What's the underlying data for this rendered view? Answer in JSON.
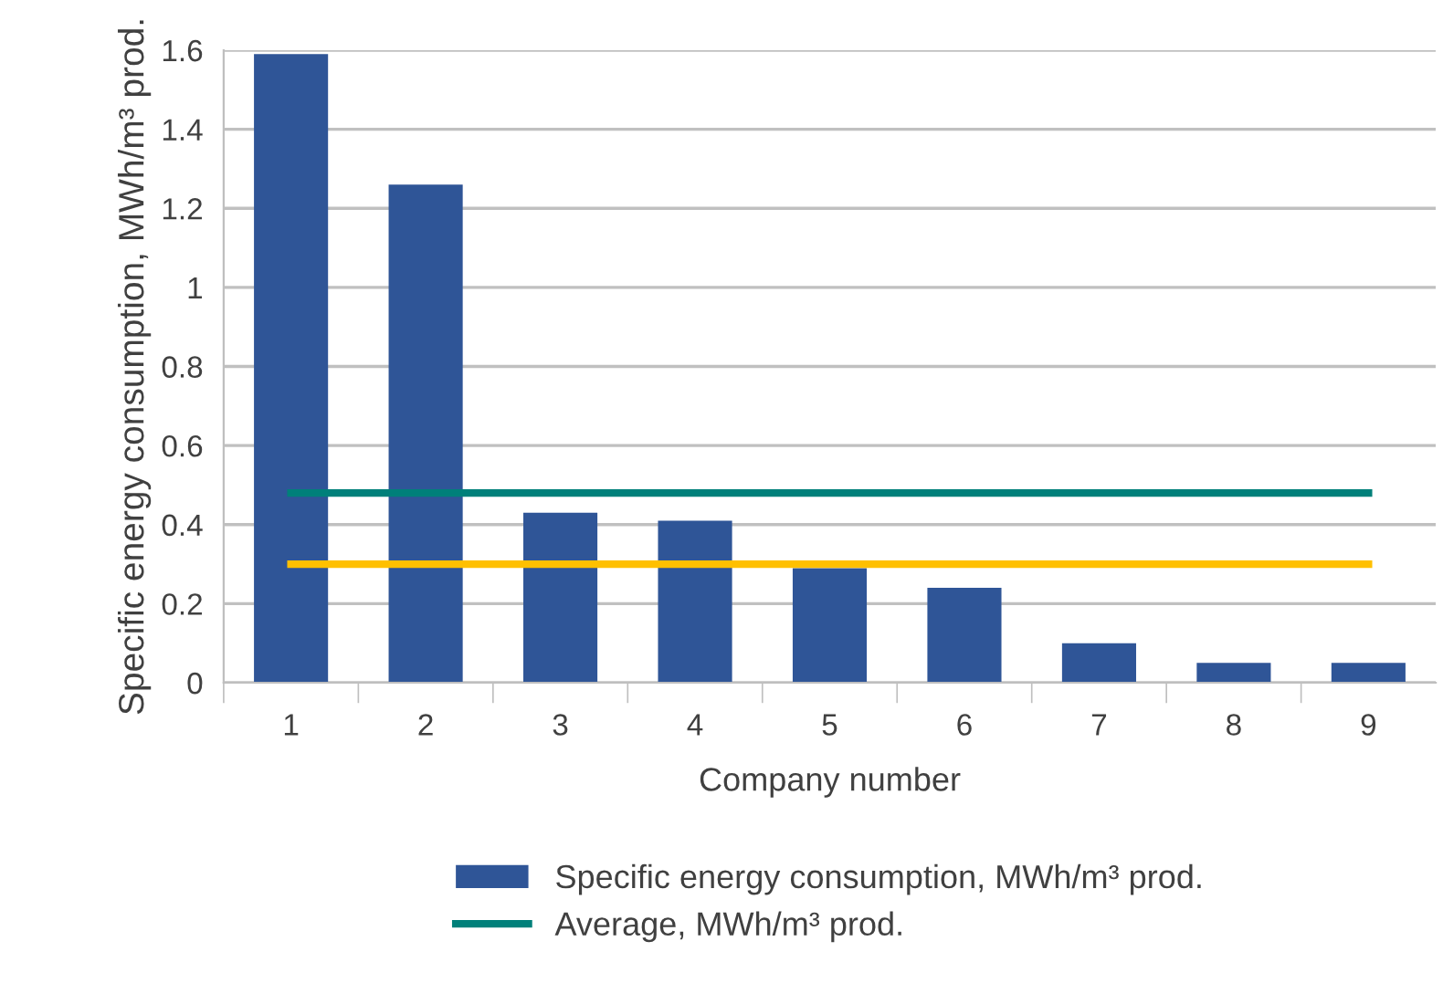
{
  "chart_data": {
    "type": "bar",
    "xlabel": "Company number",
    "ylabel": "Specific energy consumption, MWh/m³ prod.",
    "categories": [
      "1",
      "2",
      "3",
      "4",
      "5",
      "6",
      "7",
      "8",
      "9"
    ],
    "series": [
      {
        "name": "Specific energy consumption, MWh/m³ prod.",
        "color": "#2f5597",
        "values": [
          1.59,
          1.26,
          0.43,
          0.41,
          0.29,
          0.24,
          0.1,
          0.05,
          0.05
        ]
      },
      {
        "type": "line",
        "name": "Average, MWh/m³ prod.",
        "color": "#00807a",
        "values": [
          0.48,
          0.48,
          0.48,
          0.48,
          0.48,
          0.48,
          0.48,
          0.48,
          0.48
        ]
      },
      {
        "type": "line",
        "color": "#ffc000",
        "values": [
          0.3,
          0.3,
          0.3,
          0.3,
          0.3,
          0.3,
          0.3,
          0.3,
          0.3
        ]
      }
    ],
    "ylim": [
      0,
      1.6
    ],
    "yticks": [
      0,
      0.2,
      0.4,
      0.6,
      0.8,
      1,
      1.2,
      1.4,
      1.6
    ],
    "grid": "y",
    "legend": "bottom"
  }
}
